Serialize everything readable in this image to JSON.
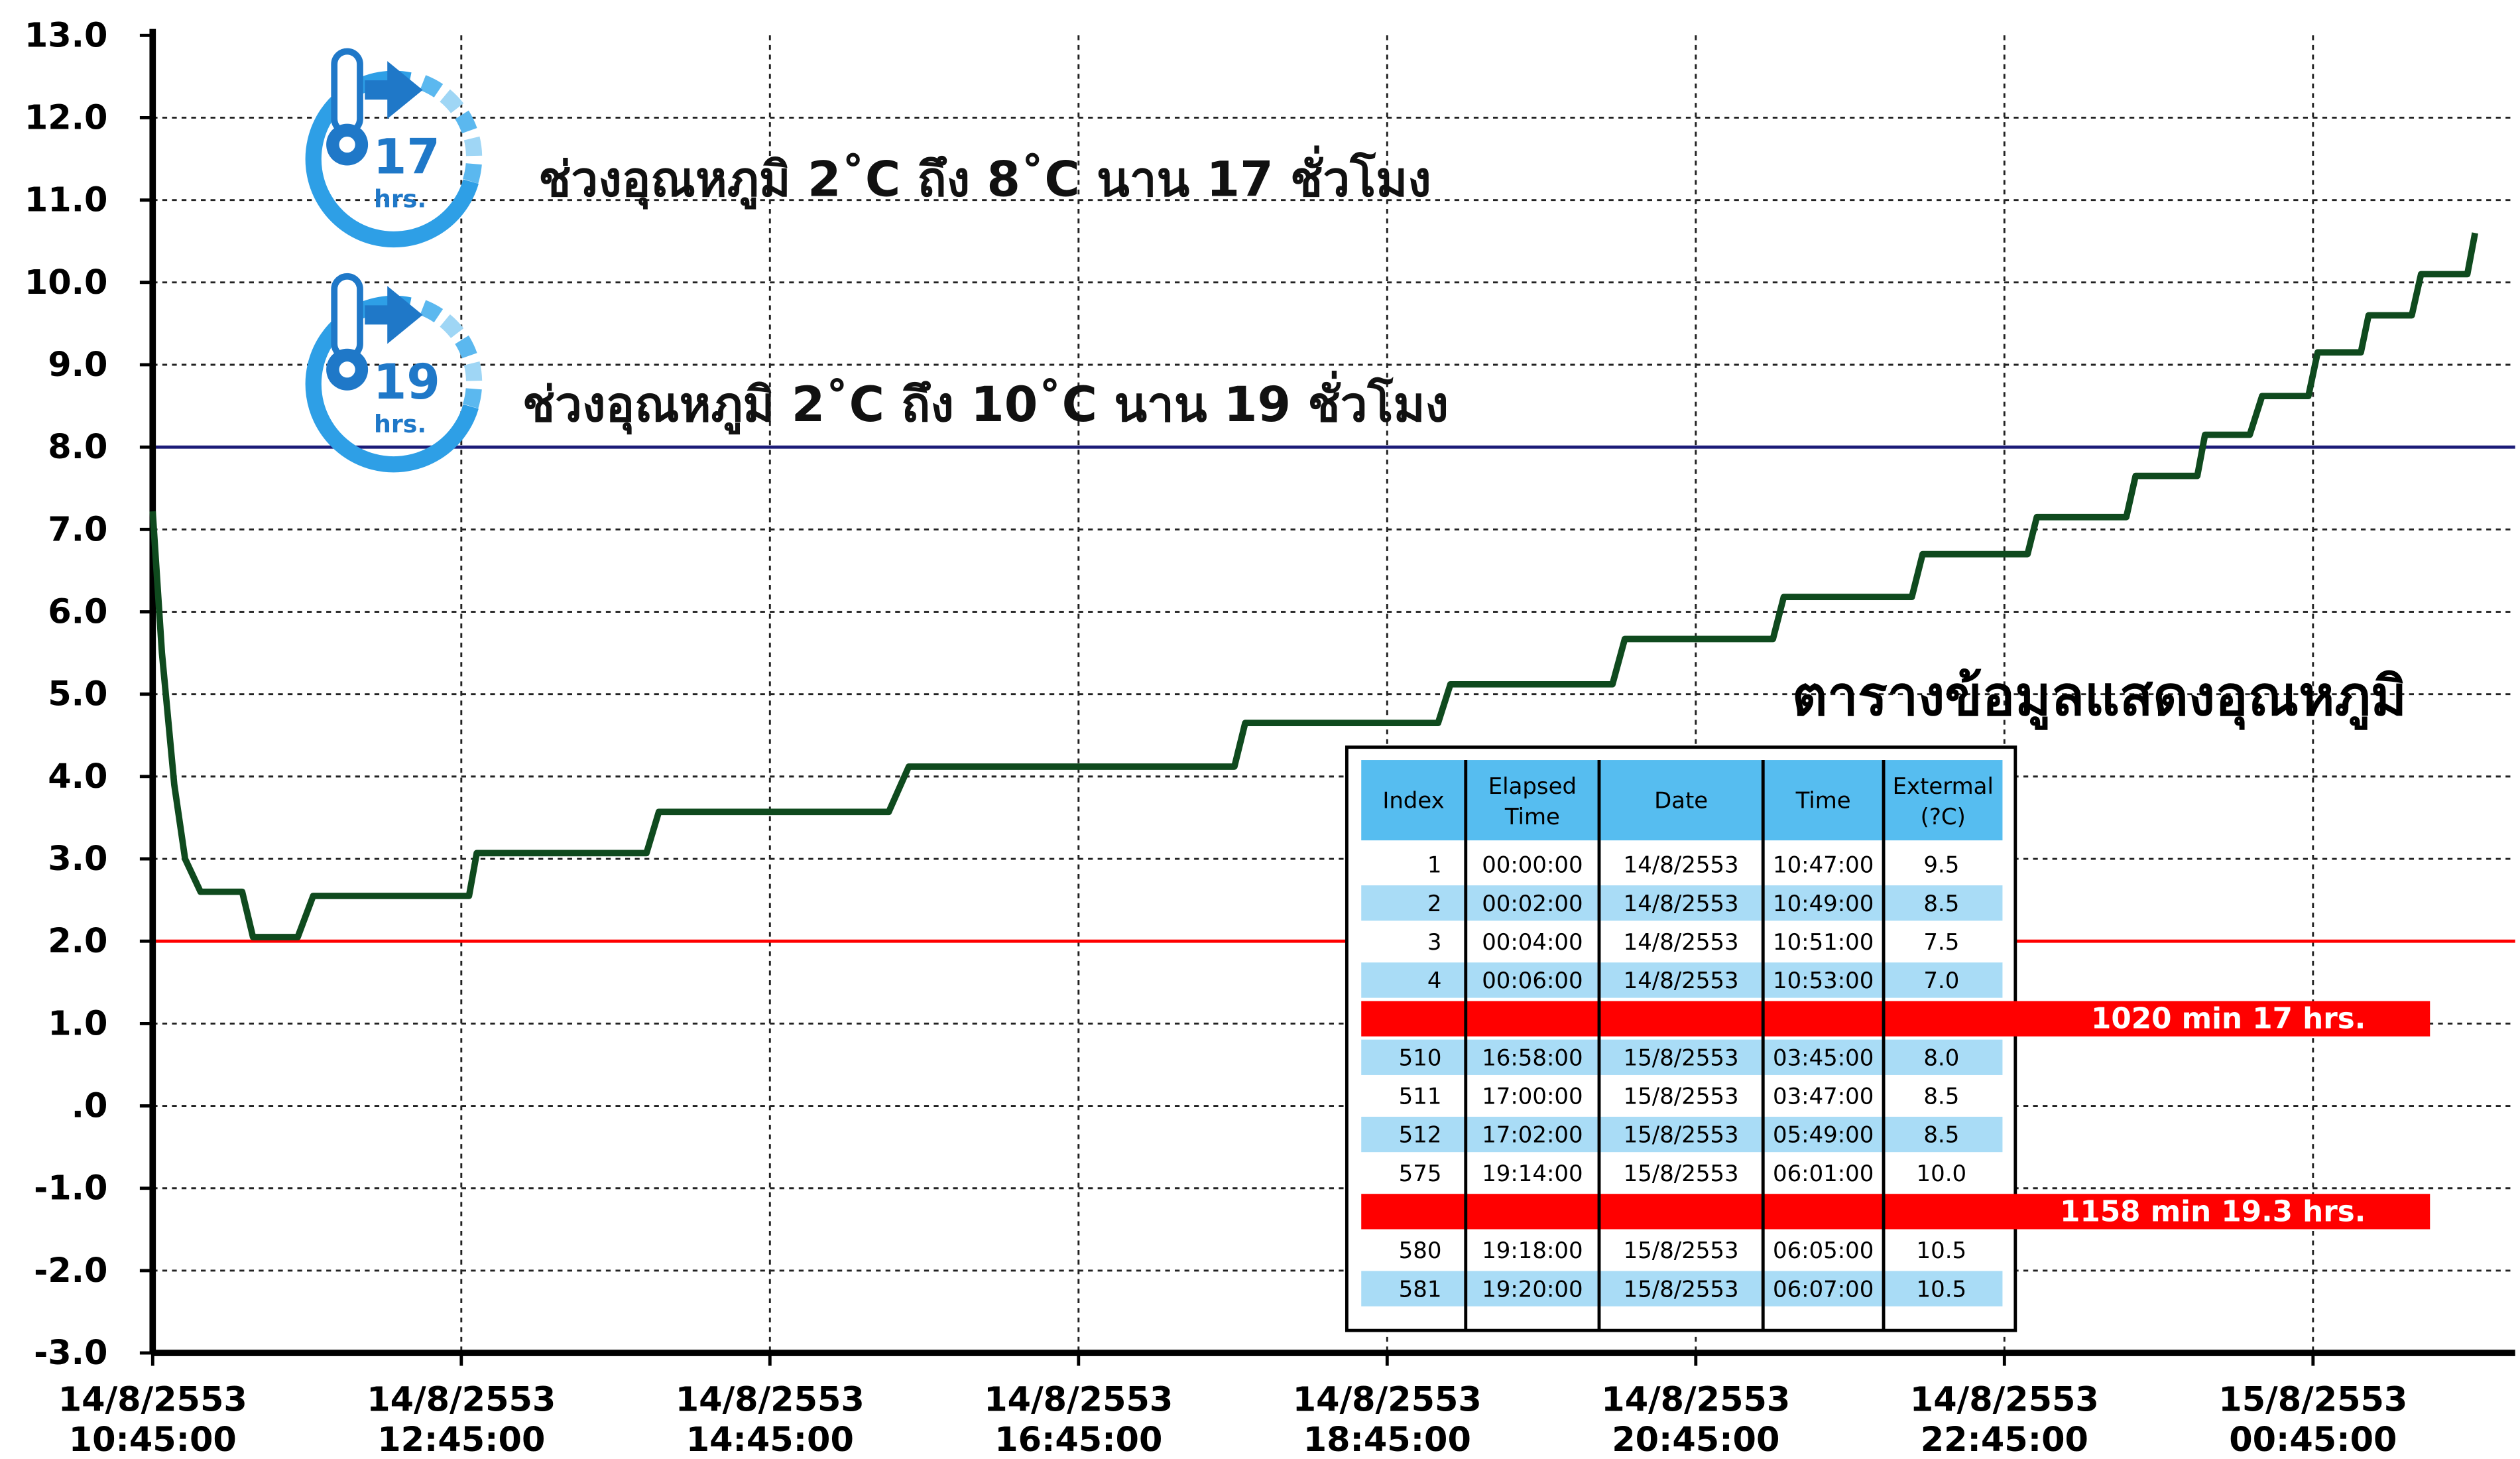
{
  "chart_data": {
    "type": "line",
    "xlim": [
      0,
      15.31
    ],
    "ylim": [
      -3,
      13
    ],
    "yticks": [
      {
        "value": -3,
        "label": "-3.0"
      },
      {
        "value": -2,
        "label": "-2.0"
      },
      {
        "value": -1,
        "label": "-1.0"
      },
      {
        "value": 0,
        "label": ".0"
      },
      {
        "value": 1,
        "label": "1.0"
      },
      {
        "value": 2,
        "label": "2.0"
      },
      {
        "value": 3,
        "label": "3.0"
      },
      {
        "value": 4,
        "label": "4.0"
      },
      {
        "value": 5,
        "label": "5.0"
      },
      {
        "value": 6,
        "label": "6.0"
      },
      {
        "value": 7,
        "label": "7.0"
      },
      {
        "value": 8,
        "label": "8.0"
      },
      {
        "value": 9,
        "label": "9.0"
      },
      {
        "value": 10,
        "label": "10.0"
      },
      {
        "value": 11,
        "label": "11.0"
      },
      {
        "value": 12,
        "label": "12.0"
      },
      {
        "value": 13,
        "label": "13.0"
      }
    ],
    "xticks": [
      {
        "value": 0,
        "label": "14/8/2553\n10:45:00"
      },
      {
        "value": 2,
        "label": "14/8/2553\n12:45:00"
      },
      {
        "value": 4,
        "label": "14/8/2553\n14:45:00"
      },
      {
        "value": 6,
        "label": "14/8/2553\n16:45:00"
      },
      {
        "value": 8,
        "label": "14/8/2553\n18:45:00"
      },
      {
        "value": 10,
        "label": "14/8/2553\n20:45:00"
      },
      {
        "value": 12,
        "label": "14/8/2553\n22:45:00"
      },
      {
        "value": 14,
        "label": "15/8/2553\n00:45:00"
      }
    ],
    "grid": true,
    "x": [
      0,
      0.06,
      0.14,
      0.21,
      0.31,
      0.58,
      0.65,
      0.94,
      1.04,
      2.05,
      2.1,
      3.2,
      3.28,
      4.77,
      4.9,
      7.01,
      7.08,
      8.33,
      8.41,
      9.46,
      9.54,
      10.5,
      10.57,
      11.4,
      11.47,
      12.15,
      12.21,
      12.79,
      12.85,
      13.25,
      13.3,
      13.59,
      13.67,
      13.97,
      14.03,
      14.31,
      14.36,
      14.64,
      14.7,
      15.0,
      15.05
    ],
    "series": [
      {
        "color": "#0f4a1e",
        "values": [
          7.22,
          5.5,
          3.9,
          3.0,
          2.6,
          2.6,
          2.05,
          2.05,
          2.55,
          2.55,
          3.07,
          3.07,
          3.57,
          3.57,
          4.12,
          4.12,
          4.65,
          4.65,
          5.12,
          5.12,
          5.67,
          5.67,
          6.18,
          6.18,
          6.7,
          6.7,
          7.15,
          7.15,
          7.65,
          7.65,
          8.15,
          8.15,
          8.62,
          8.62,
          9.15,
          9.15,
          9.6,
          9.6,
          10.1,
          10.1,
          10.6
        ]
      }
    ],
    "reference_lines": [
      {
        "value": 8,
        "color": "#1c1c78"
      },
      {
        "value": 2,
        "color": "#ff0000"
      }
    ],
    "annotations": [
      {
        "text": "ช่วงอุณหภูมิ 2˚C ถึง 8˚C นาน 17 ชั่วโมง",
        "icon_number": "17",
        "icon_unit": "hrs."
      },
      {
        "text": "ช่วงอุณหภูมิ 2˚C ถึง 10˚C นาน 19 ชั่วโมง",
        "icon_number": "19",
        "icon_unit": "hrs."
      }
    ]
  },
  "table": {
    "title": "ตารางข้อมูลแสดงอุณหภูมิ",
    "columns": [
      "Index",
      "Elapsed\nTime",
      "Date",
      "Time",
      "Extermal\n(?C)"
    ],
    "header_fill": "#56bdf0",
    "rows": [
      {
        "cells": [
          "1",
          "00:00:00",
          "14/8/2553",
          "10:47:00",
          "9.5"
        ],
        "fill": "#ffffff"
      },
      {
        "cells": [
          "2",
          "00:02:00",
          "14/8/2553",
          "10:49:00",
          "8.5"
        ],
        "fill": "#a9dcf6"
      },
      {
        "cells": [
          "3",
          "00:04:00",
          "14/8/2553",
          "10:51:00",
          "7.5"
        ],
        "fill": "#ffffff"
      },
      {
        "cells": [
          "4",
          "00:06:00",
          "14/8/2553",
          "10:53:00",
          "7.0"
        ],
        "fill": "#a9dcf6"
      },
      {
        "label": "1020 min 17 hrs.",
        "fill": "#ff0000"
      },
      {
        "cells": [
          "510",
          "16:58:00",
          "15/8/2553",
          "03:45:00",
          "8.0"
        ],
        "fill": "#a9dcf6"
      },
      {
        "cells": [
          "511",
          "17:00:00",
          "15/8/2553",
          "03:47:00",
          "8.5"
        ],
        "fill": "#ffffff"
      },
      {
        "cells": [
          "512",
          "17:02:00",
          "15/8/2553",
          "05:49:00",
          "8.5"
        ],
        "fill": "#a9dcf6"
      },
      {
        "cells": [
          "575",
          "19:14:00",
          "15/8/2553",
          "06:01:00",
          "10.0"
        ],
        "fill": "#ffffff"
      },
      {
        "label": "1158 min 19.3 hrs.",
        "fill": "#ff0000"
      },
      {
        "cells": [
          "580",
          "19:18:00",
          "15/8/2553",
          "06:05:00",
          "10.5"
        ],
        "fill": "#ffffff"
      },
      {
        "cells": [
          "581",
          "19:20:00",
          "15/8/2553",
          "06:07:00",
          "10.5"
        ],
        "fill": "#a9dcf6"
      }
    ]
  }
}
